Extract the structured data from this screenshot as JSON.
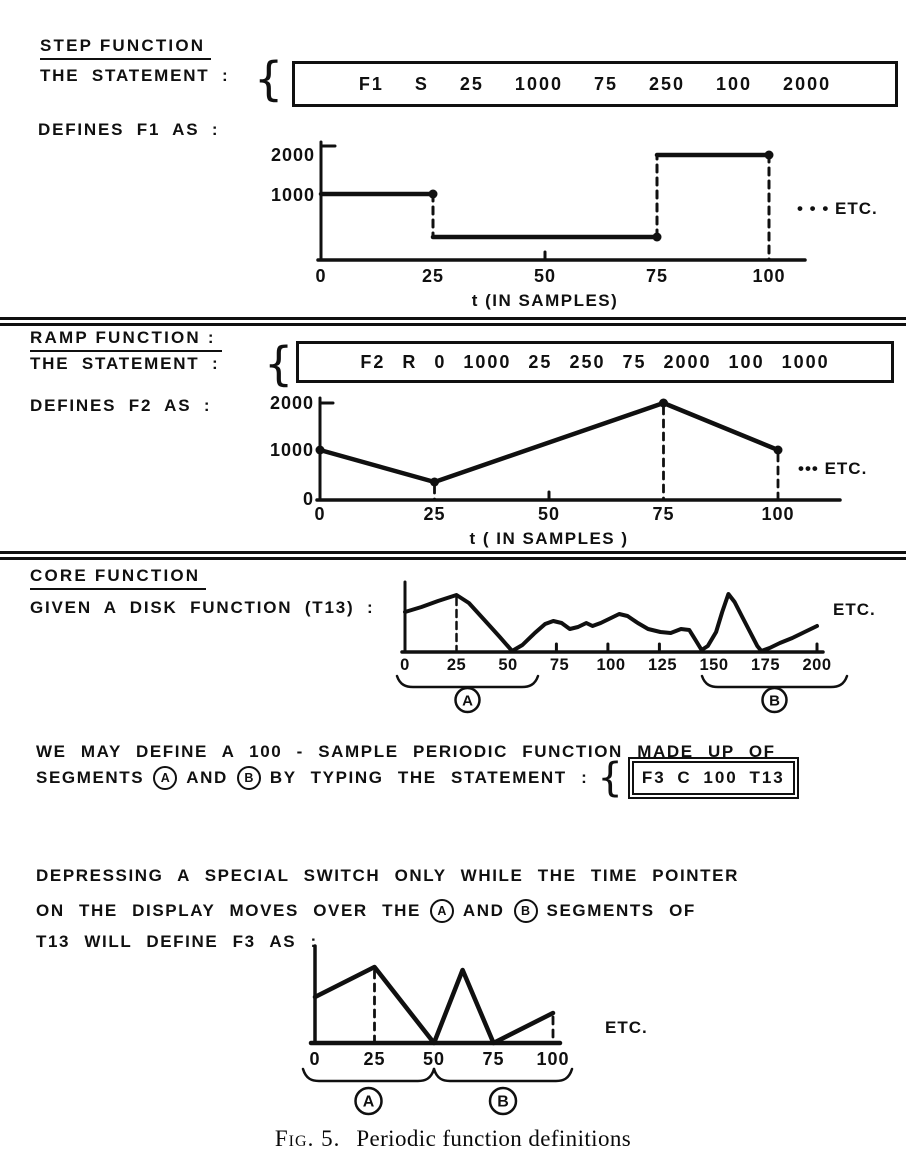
{
  "page": {
    "background": "#ffffff",
    "ink": "#101010"
  },
  "sections": {
    "step": {
      "title": "STEP FUNCTION",
      "statement_label": "THE STATEMENT :",
      "brace": "{",
      "statement": "F1 S 25 1000 75 250 100 2000",
      "defines_label": "DEFINES F1 AS :"
    },
    "ramp": {
      "title": "RAMP FUNCTION :",
      "statement_label": "THE STATEMENT :",
      "brace": "{",
      "statement": "F2 R 0 1000 25 250 75 2000 100 1000",
      "defines_label": "DEFINES F2 AS :"
    },
    "core": {
      "title": "CORE FUNCTION",
      "given_label": "GIVEN A DISK FUNCTION (T13) :",
      "we_may_define": {
        "line1": "WE MAY DEFINE A 100 - SAMPLE PERIODIC FUNCTION MADE UP OF",
        "line2_pre": "SEGMENTS",
        "segment_a": "A",
        "line2_mid": "AND",
        "segment_b": "B",
        "line2_post": "BY TYPING THE STATEMENT :",
        "brace": "{",
        "statement": "F3 C 100 T13"
      },
      "depressing": {
        "line1": "DEPRESSING A SPECIAL SWITCH ONLY WHILE THE TIME POINTER",
        "line2_pre": "ON THE DISPLAY MOVES OVER THE",
        "segment_a": "A",
        "line2_mid": "AND",
        "segment_b": "B",
        "line2_post": "SEGMENTS OF",
        "line3": "T13 WILL DEFINE F3 AS :"
      }
    }
  },
  "caption": {
    "label": "Fig. 5.",
    "text": "Periodic function definitions"
  },
  "chart_data": [
    {
      "id": "f1",
      "type": "step",
      "name": "F1 step function",
      "statement": "F1 S 25 1000 75 250 100 2000",
      "segments": [
        {
          "from_t": 0,
          "to_t": 25,
          "value": 1000
        },
        {
          "from_t": 25,
          "to_t": 75,
          "value": 250
        },
        {
          "from_t": 75,
          "to_t": 100,
          "value": 2000
        }
      ],
      "x_ticks": [
        0,
        25,
        50,
        75,
        100
      ],
      "y_ticks": [
        1000,
        2000
      ],
      "xlabel": "t (IN SAMPLES)",
      "etc_label": "• • • ETC.",
      "xlim": [
        0,
        107
      ],
      "ylim": [
        0,
        2300
      ],
      "grid": false,
      "legend": "none"
    },
    {
      "id": "f2",
      "type": "line",
      "name": "F2 ramp function",
      "statement": "F2 R 0 1000 25 250 75 2000 100 1000",
      "points": [
        [
          0,
          1000
        ],
        [
          25,
          250
        ],
        [
          75,
          2000
        ],
        [
          100,
          1000
        ]
      ],
      "x_ticks": [
        0,
        25,
        50,
        75,
        100
      ],
      "y_ticks": [
        0,
        1000,
        2000
      ],
      "dashed_at": [
        25,
        75,
        100
      ],
      "xlabel": "t ( IN SAMPLES )",
      "etc_label": "••• ETC.",
      "xlim": [
        0,
        107
      ],
      "ylim": [
        0,
        2300
      ],
      "grid": false,
      "legend": "none"
    },
    {
      "id": "t13",
      "type": "line",
      "name": "disk function T13",
      "y_unit": "relative amplitude (axis unlabeled)",
      "points": [
        [
          0,
          40
        ],
        [
          8,
          45
        ],
        [
          16,
          51
        ],
        [
          25,
          57
        ],
        [
          31,
          49
        ],
        [
          39,
          31
        ],
        [
          46,
          15
        ],
        [
          52,
          1
        ],
        [
          57,
          7
        ],
        [
          63,
          19
        ],
        [
          68,
          28
        ],
        [
          72,
          31
        ],
        [
          76,
          29
        ],
        [
          80,
          23
        ],
        [
          84,
          25
        ],
        [
          88,
          29
        ],
        [
          91,
          26
        ],
        [
          95,
          29
        ],
        [
          100,
          34
        ],
        [
          104,
          38
        ],
        [
          108,
          36
        ],
        [
          113,
          29
        ],
        [
          118,
          23
        ],
        [
          124,
          20
        ],
        [
          129,
          19
        ],
        [
          134,
          23
        ],
        [
          138,
          22
        ],
        [
          141,
          12
        ],
        [
          144,
          2
        ],
        [
          147,
          6
        ],
        [
          151,
          20
        ],
        [
          154,
          40
        ],
        [
          157,
          58
        ],
        [
          160,
          50
        ],
        [
          164,
          34
        ],
        [
          168,
          18
        ],
        [
          171,
          6
        ],
        [
          173,
          1
        ],
        [
          177,
          4
        ],
        [
          182,
          9
        ],
        [
          188,
          14
        ],
        [
          194,
          20
        ],
        [
          200,
          26
        ]
      ],
      "x_ticks": [
        0,
        25,
        50,
        75,
        100,
        125,
        150,
        175,
        200
      ],
      "axis_up_ticks": [
        73.5,
        98.5,
        123.5,
        200
      ],
      "dashed_at": [
        25
      ],
      "braces": [
        {
          "label": "A",
          "from_t": 0,
          "to_t": 50
        },
        {
          "label": "B",
          "from_t": 150,
          "to_t": 200
        }
      ],
      "etc_label": "ETC.",
      "xlim": [
        0,
        207
      ],
      "grid": false,
      "legend": "none"
    },
    {
      "id": "f3",
      "type": "line",
      "name": "F3 core function (periodic, 100 samples)",
      "y_unit": "relative amplitude (axis unlabeled)",
      "points": [
        [
          0,
          46
        ],
        [
          25,
          76
        ],
        [
          50,
          0
        ],
        [
          62,
          73
        ],
        [
          75,
          0
        ],
        [
          100,
          30
        ]
      ],
      "x_ticks": [
        0,
        25,
        50,
        75,
        100
      ],
      "dashed_at": [
        25,
        100
      ],
      "braces": [
        {
          "label": "A",
          "from_t": 0,
          "to_t": 50
        },
        {
          "label": "B",
          "from_t": 50,
          "to_t": 100
        }
      ],
      "etc_label": "ETC.",
      "xlim": [
        0,
        103
      ],
      "grid": false,
      "legend": "none"
    }
  ]
}
